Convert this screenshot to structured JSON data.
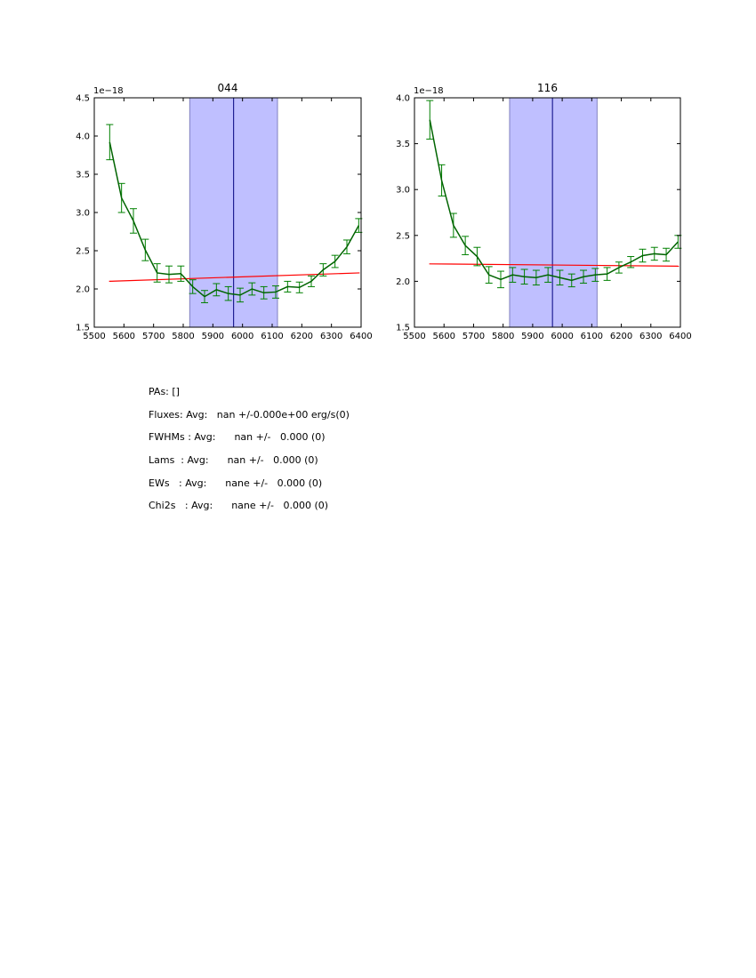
{
  "colors": {
    "data_line": "#006400",
    "error_bars": "#008000",
    "fit_line": "#ff0000",
    "band_fill": "#bfbfff",
    "band_edge": "#8080c0",
    "center_line": "#000080"
  },
  "chart_data": [
    {
      "type": "line",
      "title": "044",
      "offset_label": "1e−18",
      "xlim": [
        5500,
        6400
      ],
      "ylim": [
        1.5,
        4.5
      ],
      "xticks": [
        5500,
        5600,
        5700,
        5800,
        5900,
        6000,
        6100,
        6200,
        6300,
        6400
      ],
      "xtick_labels": [
        "5500",
        "5600",
        "5700",
        "5800",
        "5900",
        "6000",
        "6100",
        "6200",
        "6300",
        "6400"
      ],
      "yticks": [
        1.5,
        2.0,
        2.5,
        3.0,
        3.5,
        4.0,
        4.5
      ],
      "ytick_labels": [
        "1.5",
        "2.0",
        "2.5",
        "3.0",
        "3.5",
        "4.0",
        "4.5"
      ],
      "band": [
        5822,
        6118
      ],
      "center_x": 5970,
      "fit": {
        "x": [
          5550,
          6395
        ],
        "y": [
          2.1,
          2.21
        ]
      },
      "series": [
        {
          "x": [
            5552,
            5592,
            5632,
            5672,
            5712,
            5752,
            5792,
            5832,
            5872,
            5912,
            5952,
            5992,
            6032,
            6072,
            6112,
            6152,
            6192,
            6232,
            6272,
            6312,
            6352,
            6392
          ],
          "y": [
            3.92,
            3.19,
            2.89,
            2.51,
            2.21,
            2.19,
            2.2,
            2.03,
            1.9,
            1.99,
            1.94,
            1.92,
            2.0,
            1.95,
            1.96,
            2.03,
            2.02,
            2.1,
            2.25,
            2.36,
            2.55,
            2.83
          ],
          "err": [
            0.23,
            0.19,
            0.16,
            0.14,
            0.12,
            0.11,
            0.1,
            0.09,
            0.08,
            0.08,
            0.09,
            0.09,
            0.08,
            0.08,
            0.08,
            0.07,
            0.07,
            0.07,
            0.08,
            0.08,
            0.09,
            0.09
          ]
        }
      ]
    },
    {
      "type": "line",
      "title": "116",
      "offset_label": "1e−18",
      "xlim": [
        5500,
        6400
      ],
      "ylim": [
        1.5,
        4.0
      ],
      "xticks": [
        5500,
        5600,
        5700,
        5800,
        5900,
        6000,
        6100,
        6200,
        6300,
        6400
      ],
      "xtick_labels": [
        "5500",
        "5600",
        "5700",
        "5800",
        "5900",
        "6000",
        "6100",
        "6200",
        "6300",
        "6400"
      ],
      "yticks": [
        1.5,
        2.0,
        2.5,
        3.0,
        3.5,
        4.0
      ],
      "ytick_labels": [
        "1.5",
        "2.0",
        "2.5",
        "3.0",
        "3.5",
        "4.0"
      ],
      "band": [
        5822,
        6118
      ],
      "center_x": 5967,
      "fit": {
        "x": [
          5550,
          6395
        ],
        "y": [
          2.19,
          2.165
        ]
      },
      "series": [
        {
          "x": [
            5552,
            5592,
            5632,
            5672,
            5712,
            5752,
            5792,
            5832,
            5872,
            5912,
            5952,
            5992,
            6032,
            6072,
            6112,
            6152,
            6192,
            6232,
            6272,
            6312,
            6352,
            6392
          ],
          "y": [
            3.76,
            3.1,
            2.61,
            2.39,
            2.27,
            2.07,
            2.02,
            2.07,
            2.05,
            2.04,
            2.07,
            2.04,
            2.01,
            2.05,
            2.07,
            2.08,
            2.15,
            2.21,
            2.28,
            2.3,
            2.29,
            2.43
          ],
          "err": [
            0.21,
            0.17,
            0.13,
            0.1,
            0.1,
            0.09,
            0.09,
            0.08,
            0.08,
            0.08,
            0.08,
            0.08,
            0.07,
            0.07,
            0.07,
            0.07,
            0.06,
            0.06,
            0.07,
            0.07,
            0.07,
            0.07
          ]
        }
      ]
    }
  ],
  "stats": {
    "pas": "PAs: []",
    "fluxes": "Fluxes: Avg:   nan +/-0.000e+00 erg/s(0)",
    "fwhms": "FWHMs : Avg:      nan +/-   0.000 (0)",
    "lams": "Lams  : Avg:      nan +/-   0.000 (0)",
    "ews": "EWs   : Avg:      nane +/-   0.000 (0)",
    "chi2s": "Chi2s   : Avg:      nane +/-   0.000 (0)"
  }
}
